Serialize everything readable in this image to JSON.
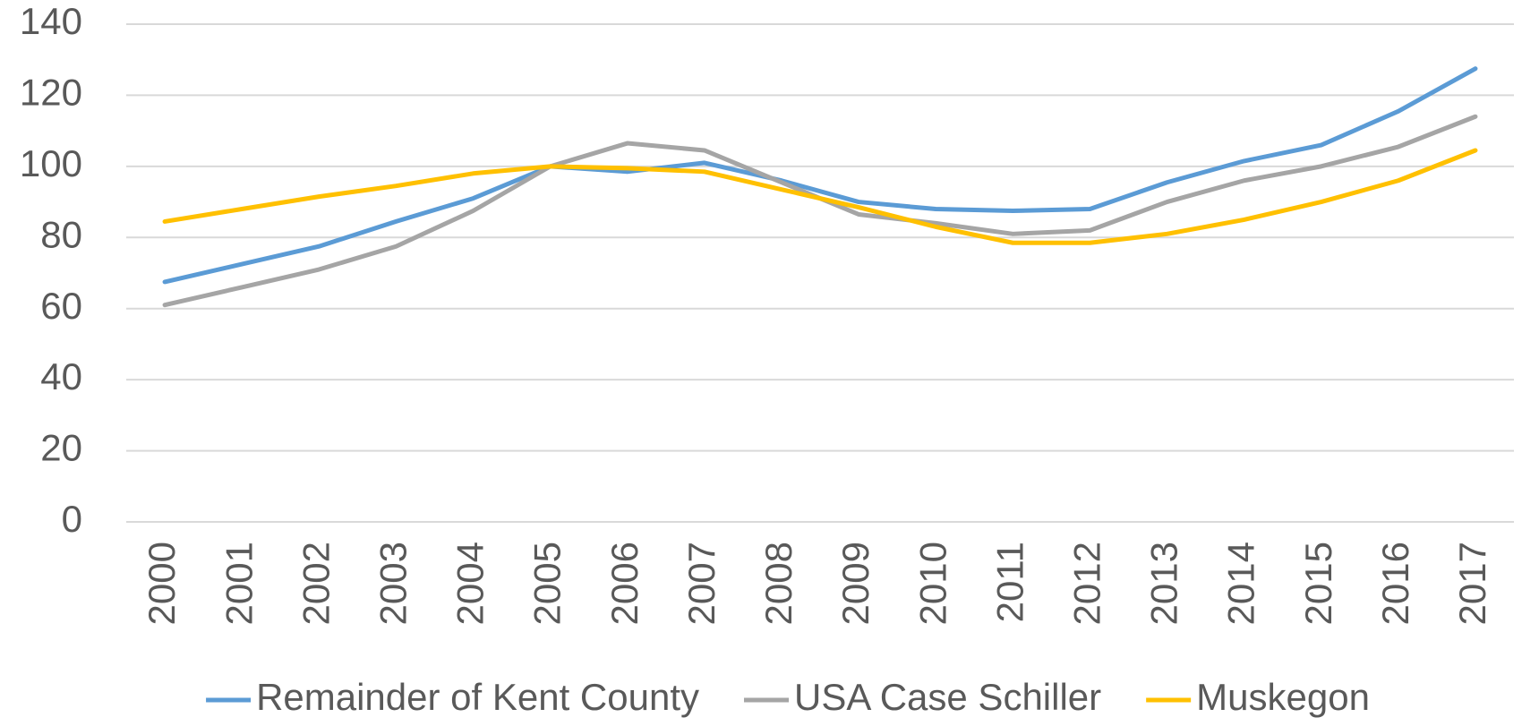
{
  "chart_data": {
    "type": "line",
    "categories": [
      "2000",
      "2001",
      "2002",
      "2003",
      "2004",
      "2005",
      "2006",
      "2007",
      "2008",
      "2009",
      "2010",
      "2011",
      "2012",
      "2013",
      "2014",
      "2015",
      "2016",
      "2017"
    ],
    "series": [
      {
        "name": "Remainder of Kent County",
        "color": "#5b9bd5",
        "values": [
          67.5,
          72.5,
          77.5,
          84.5,
          91,
          100,
          98.5,
          101,
          96,
          90,
          88,
          87.5,
          88,
          95.5,
          101.5,
          106,
          115.5,
          127.5
        ]
      },
      {
        "name": "USA Case Schiller",
        "color": "#a5a5a5",
        "values": [
          61,
          66,
          71,
          77.5,
          87.5,
          100,
          106.5,
          104.5,
          95.5,
          86.5,
          84,
          81,
          82,
          90,
          96,
          100,
          105.5,
          114
        ]
      },
      {
        "name": "Muskegon",
        "color": "#ffc000",
        "values": [
          84.5,
          88,
          91.5,
          94.5,
          98,
          100,
          99.5,
          98.5,
          93.5,
          88.5,
          83,
          78.5,
          78.5,
          81,
          85,
          90,
          96,
          104.5
        ]
      }
    ],
    "ylim": [
      0,
      140
    ],
    "yticks": [
      0,
      20,
      40,
      60,
      80,
      100,
      120,
      140
    ],
    "grid": true,
    "legend": "bottom"
  }
}
